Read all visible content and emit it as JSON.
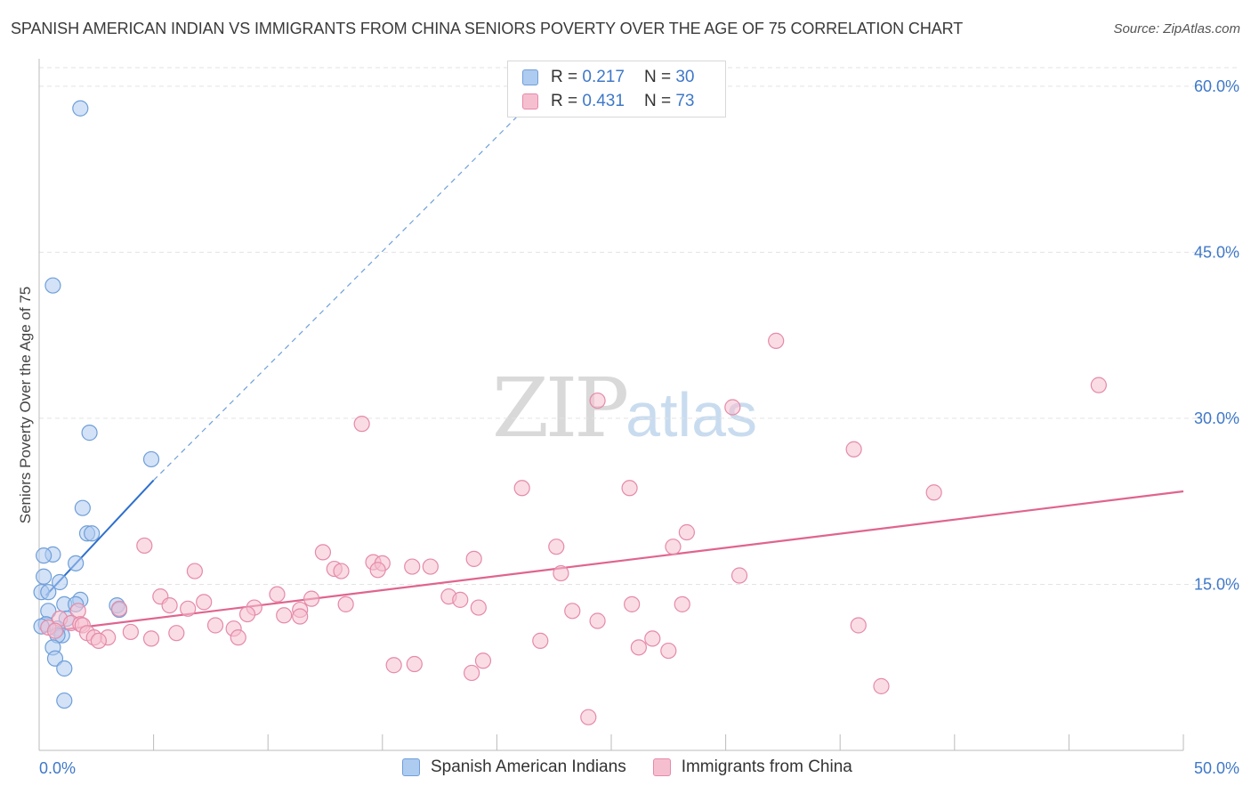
{
  "title": "SPANISH AMERICAN INDIAN VS IMMIGRANTS FROM CHINA SENIORS POVERTY OVER THE AGE OF 75 CORRELATION CHART",
  "source": "Source: ZipAtlas.com",
  "watermark": {
    "zip": "ZIP",
    "atlas": "atlas"
  },
  "legend_top": {
    "rows": [
      {
        "r_label": "R = ",
        "r_value": "0.217",
        "n_label": "N = ",
        "n_value": "30"
      },
      {
        "r_label": "R = ",
        "r_value": "0.431",
        "n_label": "N = ",
        "n_value": "73"
      }
    ]
  },
  "legend_bottom": {
    "items": [
      "Spanish American Indians",
      "Immigrants from China"
    ]
  },
  "colors": {
    "blue_fill": "#aecbf0",
    "blue_stroke": "#6f9fd8",
    "blue_line": "#2f6fce",
    "pink_fill": "#f6bfd0",
    "pink_stroke": "#e58aa8",
    "pink_line": "#e0648f",
    "tick_label": "#3f78c8",
    "grid": "#e3e3e3"
  },
  "chart_data": {
    "type": "scatter",
    "title": "SPANISH AMERICAN INDIAN VS IMMIGRANTS FROM CHINA SENIORS POVERTY OVER THE AGE OF 75 CORRELATION CHART",
    "xlabel": "",
    "ylabel": "Seniors Poverty Over the Age of 75",
    "xlim": [
      0,
      50
    ],
    "ylim": [
      0,
      62
    ],
    "x_tick_labels": [
      {
        "value": 0,
        "label": "0.0%"
      },
      {
        "value": 50,
        "label": "50.0%"
      }
    ],
    "y_tick_labels": [
      {
        "value": 15,
        "label": "15.0%"
      },
      {
        "value": 30,
        "label": "30.0%"
      },
      {
        "value": 45,
        "label": "45.0%"
      },
      {
        "value": 60,
        "label": "60.0%"
      }
    ],
    "x_minor_ticks": [
      5,
      10,
      15,
      20,
      25,
      30,
      35,
      40,
      45,
      50
    ],
    "series": [
      {
        "name": "Spanish American Indians",
        "r": 0.217,
        "n": 30,
        "color": "#aecbf0",
        "points": [
          [
            1.8,
            58.0
          ],
          [
            0.6,
            42.0
          ],
          [
            2.2,
            28.7
          ],
          [
            4.9,
            26.3
          ],
          [
            1.9,
            21.9
          ],
          [
            2.1,
            19.6
          ],
          [
            2.3,
            19.6
          ],
          [
            0.6,
            17.7
          ],
          [
            0.2,
            17.6
          ],
          [
            1.6,
            16.9
          ],
          [
            0.2,
            15.7
          ],
          [
            0.9,
            15.2
          ],
          [
            0.1,
            14.3
          ],
          [
            0.4,
            14.3
          ],
          [
            1.8,
            13.6
          ],
          [
            1.1,
            13.2
          ],
          [
            1.6,
            13.2
          ],
          [
            3.4,
            13.1
          ],
          [
            3.5,
            12.7
          ],
          [
            0.4,
            12.6
          ],
          [
            1.2,
            11.9
          ],
          [
            0.3,
            11.4
          ],
          [
            0.8,
            11.0
          ],
          [
            1.0,
            10.4
          ],
          [
            0.8,
            10.4
          ],
          [
            0.6,
            9.3
          ],
          [
            0.7,
            8.3
          ],
          [
            1.1,
            7.4
          ],
          [
            1.1,
            4.5
          ],
          [
            0.1,
            11.2
          ]
        ],
        "trend": {
          "x": [
            0.3,
            5.0
          ],
          "y": [
            14.0,
            24.4
          ],
          "dashed_to": {
            "x": 21.0,
            "y": 57.5
          }
        }
      },
      {
        "name": "Immigrants from China",
        "r": 0.431,
        "n": 73,
        "color": "#f6bfd0",
        "points": [
          [
            32.2,
            37.0
          ],
          [
            46.3,
            33.0
          ],
          [
            24.4,
            31.6
          ],
          [
            30.3,
            31.0
          ],
          [
            14.1,
            29.5
          ],
          [
            35.6,
            27.2
          ],
          [
            21.1,
            23.7
          ],
          [
            25.8,
            23.7
          ],
          [
            39.1,
            23.3
          ],
          [
            28.3,
            19.7
          ],
          [
            4.6,
            18.5
          ],
          [
            22.6,
            18.4
          ],
          [
            27.7,
            18.4
          ],
          [
            12.4,
            17.9
          ],
          [
            19.0,
            17.3
          ],
          [
            14.6,
            17.0
          ],
          [
            15.0,
            16.9
          ],
          [
            16.3,
            16.6
          ],
          [
            17.1,
            16.6
          ],
          [
            12.9,
            16.4
          ],
          [
            13.2,
            16.2
          ],
          [
            14.8,
            16.3
          ],
          [
            6.8,
            16.2
          ],
          [
            22.8,
            16.0
          ],
          [
            30.6,
            15.8
          ],
          [
            10.4,
            14.1
          ],
          [
            5.3,
            13.9
          ],
          [
            11.9,
            13.7
          ],
          [
            17.9,
            13.9
          ],
          [
            18.4,
            13.6
          ],
          [
            7.2,
            13.4
          ],
          [
            5.7,
            13.1
          ],
          [
            13.4,
            13.2
          ],
          [
            25.9,
            13.2
          ],
          [
            28.1,
            13.2
          ],
          [
            9.4,
            12.9
          ],
          [
            6.5,
            12.8
          ],
          [
            11.4,
            12.7
          ],
          [
            19.2,
            12.9
          ],
          [
            23.3,
            12.6
          ],
          [
            9.1,
            12.3
          ],
          [
            10.7,
            12.2
          ],
          [
            11.4,
            12.1
          ],
          [
            3.5,
            12.8
          ],
          [
            1.7,
            12.6
          ],
          [
            35.8,
            11.3
          ],
          [
            0.9,
            11.9
          ],
          [
            1.4,
            11.5
          ],
          [
            1.8,
            11.4
          ],
          [
            24.4,
            11.7
          ],
          [
            1.9,
            11.3
          ],
          [
            0.4,
            11.1
          ],
          [
            7.7,
            11.3
          ],
          [
            8.5,
            11.0
          ],
          [
            0.7,
            10.8
          ],
          [
            4.0,
            10.7
          ],
          [
            6.0,
            10.6
          ],
          [
            2.1,
            10.6
          ],
          [
            8.7,
            10.2
          ],
          [
            3.0,
            10.2
          ],
          [
            2.4,
            10.2
          ],
          [
            4.9,
            10.1
          ],
          [
            2.6,
            9.9
          ],
          [
            21.9,
            9.9
          ],
          [
            26.8,
            10.1
          ],
          [
            26.2,
            9.3
          ],
          [
            27.5,
            9.0
          ],
          [
            15.5,
            7.7
          ],
          [
            16.4,
            7.8
          ],
          [
            19.4,
            8.1
          ],
          [
            18.9,
            7.0
          ],
          [
            36.8,
            5.8
          ],
          [
            24.0,
            3.0
          ]
        ],
        "trend": {
          "x": [
            0.2,
            50.0
          ],
          "y": [
            10.7,
            23.4
          ]
        }
      }
    ]
  }
}
